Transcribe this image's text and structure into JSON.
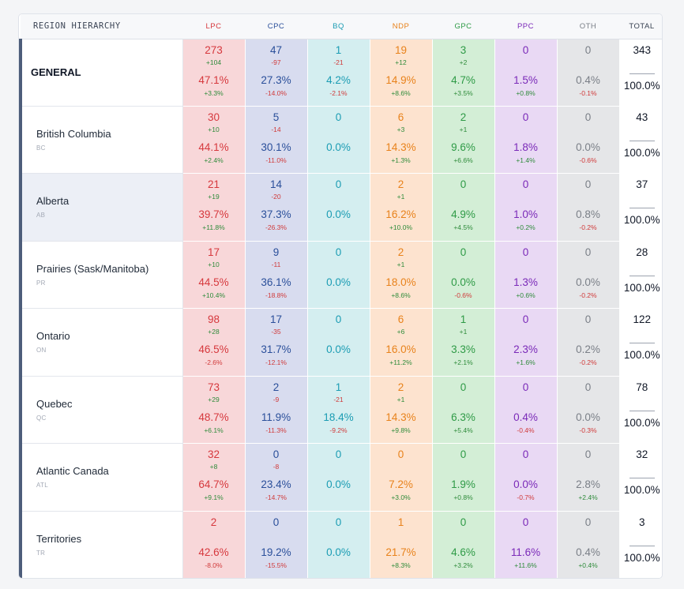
{
  "header": {
    "region_label": "REGION HIERARCHY",
    "total_label": "TOTAL"
  },
  "parties": [
    {
      "label": "LPC",
      "color": "#d6383d",
      "bg": "#f8d7d9"
    },
    {
      "label": "CPC",
      "color": "#2a4f9a",
      "bg": "#d8dcef"
    },
    {
      "label": "BQ",
      "color": "#1b9cb3",
      "bg": "#d4eef0"
    },
    {
      "label": "NDP",
      "color": "#e8821b",
      "bg": "#fde3cf"
    },
    {
      "label": "GPC",
      "color": "#2e9a46",
      "bg": "#d3eed6"
    },
    {
      "label": "PPC",
      "color": "#7a29b8",
      "bg": "#e9d9f4"
    },
    {
      "label": "OTH",
      "color": "#7a7f87",
      "bg": "#e5e6e8"
    }
  ],
  "rows": [
    {
      "name": "GENERAL",
      "code": "",
      "general": true,
      "highlight": false,
      "cells": [
        {
          "seats": "273",
          "seat_delta": "+104",
          "pct": "47.1%",
          "pct_delta": "+3.3%"
        },
        {
          "seats": "47",
          "seat_delta": "-97",
          "pct": "27.3%",
          "pct_delta": "-14.0%"
        },
        {
          "seats": "1",
          "seat_delta": "-21",
          "pct": "4.2%",
          "pct_delta": "-2.1%"
        },
        {
          "seats": "19",
          "seat_delta": "+12",
          "pct": "14.9%",
          "pct_delta": "+8.6%"
        },
        {
          "seats": "3",
          "seat_delta": "+2",
          "pct": "4.7%",
          "pct_delta": "+3.5%"
        },
        {
          "seats": "0",
          "seat_delta": "",
          "pct": "1.5%",
          "pct_delta": "+0.8%"
        },
        {
          "seats": "0",
          "seat_delta": "",
          "pct": "0.4%",
          "pct_delta": "-0.1%"
        }
      ],
      "total_seats": "343",
      "total_pct": "100.0%"
    },
    {
      "name": "British Columbia",
      "code": "BC",
      "general": false,
      "highlight": false,
      "cells": [
        {
          "seats": "30",
          "seat_delta": "+10",
          "pct": "44.1%",
          "pct_delta": "+2.4%"
        },
        {
          "seats": "5",
          "seat_delta": "-14",
          "pct": "30.1%",
          "pct_delta": "-11.0%"
        },
        {
          "seats": "0",
          "seat_delta": "",
          "pct": "0.0%",
          "pct_delta": ""
        },
        {
          "seats": "6",
          "seat_delta": "+3",
          "pct": "14.3%",
          "pct_delta": "+1.3%"
        },
        {
          "seats": "2",
          "seat_delta": "+1",
          "pct": "9.6%",
          "pct_delta": "+6.6%"
        },
        {
          "seats": "0",
          "seat_delta": "",
          "pct": "1.8%",
          "pct_delta": "+1.4%"
        },
        {
          "seats": "0",
          "seat_delta": "",
          "pct": "0.0%",
          "pct_delta": "-0.6%"
        }
      ],
      "total_seats": "43",
      "total_pct": "100.0%"
    },
    {
      "name": "Alberta",
      "code": "AB",
      "general": false,
      "highlight": true,
      "cells": [
        {
          "seats": "21",
          "seat_delta": "+19",
          "pct": "39.7%",
          "pct_delta": "+11.8%"
        },
        {
          "seats": "14",
          "seat_delta": "-20",
          "pct": "37.3%",
          "pct_delta": "-26.3%"
        },
        {
          "seats": "0",
          "seat_delta": "",
          "pct": "0.0%",
          "pct_delta": ""
        },
        {
          "seats": "2",
          "seat_delta": "+1",
          "pct": "16.2%",
          "pct_delta": "+10.0%"
        },
        {
          "seats": "0",
          "seat_delta": "",
          "pct": "4.9%",
          "pct_delta": "+4.5%"
        },
        {
          "seats": "0",
          "seat_delta": "",
          "pct": "1.0%",
          "pct_delta": "+0.2%"
        },
        {
          "seats": "0",
          "seat_delta": "",
          "pct": "0.8%",
          "pct_delta": "-0.2%"
        }
      ],
      "total_seats": "37",
      "total_pct": "100.0%"
    },
    {
      "name": "Prairies (Sask/Manitoba)",
      "code": "PR",
      "general": false,
      "highlight": false,
      "cells": [
        {
          "seats": "17",
          "seat_delta": "+10",
          "pct": "44.5%",
          "pct_delta": "+10.4%"
        },
        {
          "seats": "9",
          "seat_delta": "-11",
          "pct": "36.1%",
          "pct_delta": "-18.8%"
        },
        {
          "seats": "0",
          "seat_delta": "",
          "pct": "0.0%",
          "pct_delta": ""
        },
        {
          "seats": "2",
          "seat_delta": "+1",
          "pct": "18.0%",
          "pct_delta": "+8.6%"
        },
        {
          "seats": "0",
          "seat_delta": "",
          "pct": "0.0%",
          "pct_delta": "-0.6%"
        },
        {
          "seats": "0",
          "seat_delta": "",
          "pct": "1.3%",
          "pct_delta": "+0.6%"
        },
        {
          "seats": "0",
          "seat_delta": "",
          "pct": "0.0%",
          "pct_delta": "-0.2%"
        }
      ],
      "total_seats": "28",
      "total_pct": "100.0%"
    },
    {
      "name": "Ontario",
      "code": "ON",
      "general": false,
      "highlight": false,
      "cells": [
        {
          "seats": "98",
          "seat_delta": "+28",
          "pct": "46.5%",
          "pct_delta": "-2.6%"
        },
        {
          "seats": "17",
          "seat_delta": "-35",
          "pct": "31.7%",
          "pct_delta": "-12.1%"
        },
        {
          "seats": "0",
          "seat_delta": "",
          "pct": "0.0%",
          "pct_delta": ""
        },
        {
          "seats": "6",
          "seat_delta": "+6",
          "pct": "16.0%",
          "pct_delta": "+11.2%"
        },
        {
          "seats": "1",
          "seat_delta": "+1",
          "pct": "3.3%",
          "pct_delta": "+2.1%"
        },
        {
          "seats": "0",
          "seat_delta": "",
          "pct": "2.3%",
          "pct_delta": "+1.6%"
        },
        {
          "seats": "0",
          "seat_delta": "",
          "pct": "0.2%",
          "pct_delta": "-0.2%"
        }
      ],
      "total_seats": "122",
      "total_pct": "100.0%"
    },
    {
      "name": "Quebec",
      "code": "QC",
      "general": false,
      "highlight": false,
      "cells": [
        {
          "seats": "73",
          "seat_delta": "+29",
          "pct": "48.7%",
          "pct_delta": "+6.1%"
        },
        {
          "seats": "2",
          "seat_delta": "-9",
          "pct": "11.9%",
          "pct_delta": "-11.3%"
        },
        {
          "seats": "1",
          "seat_delta": "-21",
          "pct": "18.4%",
          "pct_delta": "-9.2%"
        },
        {
          "seats": "2",
          "seat_delta": "+1",
          "pct": "14.3%",
          "pct_delta": "+9.8%"
        },
        {
          "seats": "0",
          "seat_delta": "",
          "pct": "6.3%",
          "pct_delta": "+5.4%"
        },
        {
          "seats": "0",
          "seat_delta": "",
          "pct": "0.4%",
          "pct_delta": "-0.4%"
        },
        {
          "seats": "0",
          "seat_delta": "",
          "pct": "0.0%",
          "pct_delta": "-0.3%"
        }
      ],
      "total_seats": "78",
      "total_pct": "100.0%"
    },
    {
      "name": "Atlantic Canada",
      "code": "ATL",
      "general": false,
      "highlight": false,
      "cells": [
        {
          "seats": "32",
          "seat_delta": "+8",
          "pct": "64.7%",
          "pct_delta": "+9.1%"
        },
        {
          "seats": "0",
          "seat_delta": "-8",
          "pct": "23.4%",
          "pct_delta": "-14.7%"
        },
        {
          "seats": "0",
          "seat_delta": "",
          "pct": "0.0%",
          "pct_delta": ""
        },
        {
          "seats": "0",
          "seat_delta": "",
          "pct": "7.2%",
          "pct_delta": "+3.0%"
        },
        {
          "seats": "0",
          "seat_delta": "",
          "pct": "1.9%",
          "pct_delta": "+0.8%"
        },
        {
          "seats": "0",
          "seat_delta": "",
          "pct": "0.0%",
          "pct_delta": "-0.7%"
        },
        {
          "seats": "0",
          "seat_delta": "",
          "pct": "2.8%",
          "pct_delta": "+2.4%"
        }
      ],
      "total_seats": "32",
      "total_pct": "100.0%"
    },
    {
      "name": "Territories",
      "code": "TR",
      "general": false,
      "highlight": false,
      "cells": [
        {
          "seats": "2",
          "seat_delta": "",
          "pct": "42.6%",
          "pct_delta": "-8.0%"
        },
        {
          "seats": "0",
          "seat_delta": "",
          "pct": "19.2%",
          "pct_delta": "-15.5%"
        },
        {
          "seats": "0",
          "seat_delta": "",
          "pct": "0.0%",
          "pct_delta": ""
        },
        {
          "seats": "1",
          "seat_delta": "",
          "pct": "21.7%",
          "pct_delta": "+8.3%"
        },
        {
          "seats": "0",
          "seat_delta": "",
          "pct": "4.6%",
          "pct_delta": "+3.2%"
        },
        {
          "seats": "0",
          "seat_delta": "",
          "pct": "11.6%",
          "pct_delta": "+11.6%"
        },
        {
          "seats": "0",
          "seat_delta": "",
          "pct": "0.4%",
          "pct_delta": "+0.4%"
        }
      ],
      "total_seats": "3",
      "total_pct": "100.0%"
    }
  ]
}
